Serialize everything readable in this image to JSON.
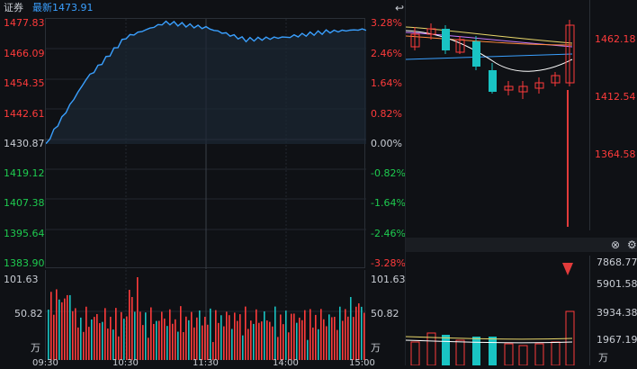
{
  "header": {
    "name": "证券",
    "latest": "最新1473.91"
  },
  "left_axis": {
    "prices": [
      "1477.83",
      "1466.09",
      "1454.35",
      "1442.61",
      "1430.87",
      "1419.12",
      "1407.38",
      "1395.64",
      "1383.90"
    ],
    "percents": [
      "3.28%",
      "2.46%",
      "1.64%",
      "0.82%",
      "0.00%",
      "-0.82%",
      "-1.64%",
      "-2.46%",
      "-3.28%"
    ]
  },
  "volume_axis": {
    "top_left": "101.63",
    "mid_left": "50.82",
    "unit_left": "万",
    "top_right": "101.63",
    "mid_right": "50.82",
    "unit_right": "万"
  },
  "time_ticks": [
    "09:30",
    "10:30",
    "11:30",
    "14:00",
    "15:00"
  ],
  "right_panel": {
    "price_labels": [
      "1462.18",
      "1412.54",
      "1364.58"
    ],
    "volume_labels": [
      "7868.77",
      "5901.58",
      "3934.38",
      "1967.19"
    ],
    "volume_unit": "万",
    "top_icon": "return-icon",
    "close_icon": "close-icon",
    "settings_icon": "gear-icon"
  },
  "colors": {
    "up": "#ff3b3b",
    "down": "#1ecb4f",
    "line": "#3aa0ff",
    "teal": "#19c3c3",
    "arrow": "#e23b3b"
  },
  "chart_data": [
    {
      "type": "line",
      "x": [
        "09:30",
        "10:00",
        "10:30",
        "11:00",
        "11:30",
        "13:30",
        "14:00",
        "14:30",
        "15:00"
      ],
      "y": [
        1431.0,
        1455.0,
        1471.0,
        1476.5,
        1474.5,
        1470.0,
        1471.0,
        1473.0,
        1473.91
      ],
      "ylim": [
        1383.9,
        1477.83
      ],
      "x_ticks": [
        "09:30",
        "10:30",
        "11:30",
        "14:00",
        "15:00"
      ]
    }
  ]
}
